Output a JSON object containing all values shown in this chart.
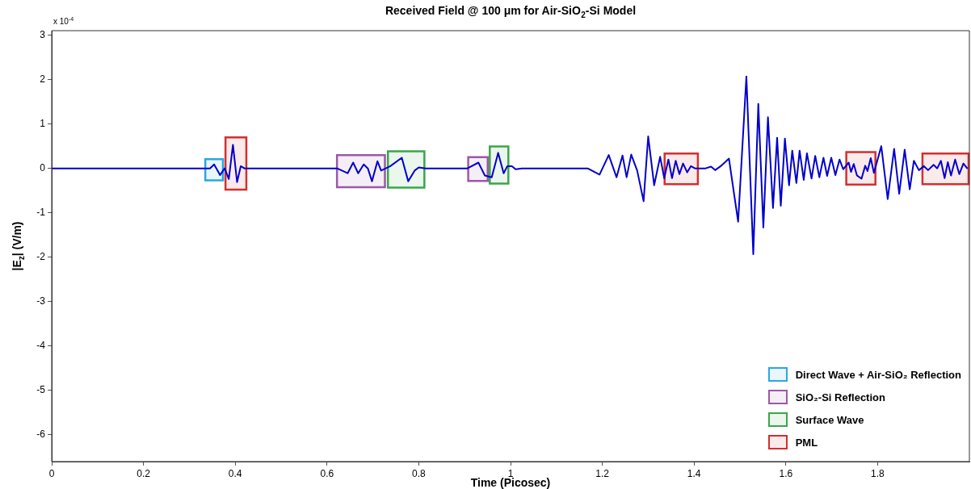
{
  "chart_data": {
    "type": "line",
    "title": "Received Field @ 100 μm for Air-SiO$_{2}$-Si Model",
    "xlabel": "Time (Picosec)",
    "ylabel": "|E$_{z}$| (V/m)",
    "annotations": [
      "x 10$^{-4}$"
    ],
    "xlim": [
      0,
      2
    ],
    "xticks": [
      0,
      0.2,
      0.4,
      0.6,
      0.8,
      1,
      1.2,
      1.4,
      1.6,
      1.8
    ],
    "ylim": [
      -6.6,
      3.1
    ],
    "yticks": [
      3,
      2,
      1,
      0,
      -1,
      -2,
      -3,
      -4,
      -5,
      -6
    ],
    "grid": false,
    "legend": "bottom right",
    "marker": "none",
    "line_style": "solid",
    "series": [
      {
        "color": "#0000cc",
        "x": [
          0,
          0.333,
          0.345,
          0.354,
          0.367,
          0.377,
          0.386,
          0.395,
          0.404,
          0.412,
          0.42,
          0.622,
          0.645,
          0.657,
          0.668,
          0.68,
          0.689,
          0.698,
          0.71,
          0.718,
          0.738,
          0.763,
          0.777,
          0.791,
          0.8,
          0.815,
          0.906,
          0.93,
          0.944,
          0.959,
          0.973,
          0.985,
          0.993,
          1.003,
          1.011,
          1.025,
          1.168,
          1.194,
          1.214,
          1.231,
          1.244,
          1.253,
          1.263,
          1.276,
          1.29,
          1.3,
          1.313,
          1.326,
          1.335,
          1.344,
          1.352,
          1.36,
          1.368,
          1.376,
          1.385,
          1.393,
          1.402,
          1.425,
          1.437,
          1.446,
          1.458,
          1.476,
          1.496,
          1.514,
          1.529,
          1.54,
          1.551,
          1.561,
          1.572,
          1.581,
          1.589,
          1.598,
          1.607,
          1.614,
          1.623,
          1.63,
          1.639,
          1.646,
          1.656,
          1.664,
          1.673,
          1.682,
          1.69,
          1.699,
          1.708,
          1.717,
          1.725,
          1.737,
          1.742,
          1.748,
          1.755,
          1.765,
          1.773,
          1.778,
          1.785,
          1.792,
          1.808,
          1.822,
          1.836,
          1.847,
          1.859,
          1.87,
          1.879,
          1.89,
          1.901,
          1.91,
          1.922,
          1.93,
          1.938,
          1.946,
          1.953,
          1.96,
          1.969,
          1.978,
          1.987,
          1.996
        ],
        "values": [
          0,
          0,
          0,
          0.09,
          -0.15,
          0,
          -0.24,
          0.53,
          -0.31,
          0.05,
          0,
          0,
          -0.11,
          0.13,
          -0.11,
          0.09,
          0,
          -0.29,
          0.16,
          -0.05,
          0.05,
          0.24,
          -0.29,
          -0.05,
          0.02,
          0,
          0,
          0.13,
          -0.16,
          -0.2,
          0.35,
          -0.11,
          0.05,
          0.05,
          -0.02,
          0,
          0,
          -0.14,
          0.3,
          -0.2,
          0.29,
          -0.2,
          0.31,
          -0.05,
          -0.74,
          0.72,
          -0.38,
          0.26,
          -0.22,
          0.2,
          -0.22,
          0.17,
          -0.13,
          0.11,
          -0.09,
          0.05,
          0,
          0,
          0.04,
          -0.04,
          0.05,
          0.22,
          -1.2,
          2.07,
          -1.93,
          1.45,
          -1.33,
          1.15,
          -0.89,
          0.69,
          -0.84,
          0.67,
          -0.38,
          0.4,
          -0.33,
          0.4,
          -0.26,
          0.34,
          -0.23,
          0.28,
          -0.2,
          0.24,
          -0.17,
          0.24,
          -0.15,
          0.2,
          -0.02,
          0.13,
          -0.08,
          0.1,
          -0.16,
          -0.23,
          0.06,
          -0.06,
          0.23,
          -0.1,
          0.5,
          -0.69,
          0.44,
          -0.57,
          0.42,
          -0.47,
          0.17,
          -0.04,
          0.05,
          -0.04,
          0.08,
          0,
          0.17,
          -0.22,
          0.14,
          -0.16,
          0.2,
          -0.13,
          0.11,
          -0.01
        ]
      }
    ],
    "bands": [
      {
        "axis": "x",
        "from": 0.333,
        "to": 0.375,
        "color": "#29a8df",
        "label": "Direct Wave + Air-SiO₂ Reflection"
      },
      {
        "axis": "x",
        "from": 0.377,
        "to": 0.426,
        "color": "#d32f2f",
        "label": null
      },
      {
        "axis": "x",
        "from": 0.62,
        "to": 0.728,
        "color": "#9b59a6",
        "label": "SiO₂-Si Reflection"
      },
      {
        "axis": "x",
        "from": 0.731,
        "to": 0.814,
        "color": "#3aa64a",
        "label": "Surface Wave"
      },
      {
        "axis": "x",
        "from": 0.906,
        "to": 0.952,
        "color": "#9b59a6",
        "label": null
      },
      {
        "axis": "x",
        "from": 0.953,
        "to": 0.997,
        "color": "#3aa64a",
        "label": null
      },
      {
        "axis": "x",
        "from": 1.334,
        "to": 1.41,
        "color": "#d32f2f",
        "label": "PML"
      },
      {
        "axis": "x",
        "from": 1.73,
        "to": 1.797,
        "color": "#d32f2f",
        "label": null
      },
      {
        "axis": "x",
        "from": 1.896,
        "to": 2,
        "color": "#d32f2f",
        "label": null
      }
    ]
  }
}
